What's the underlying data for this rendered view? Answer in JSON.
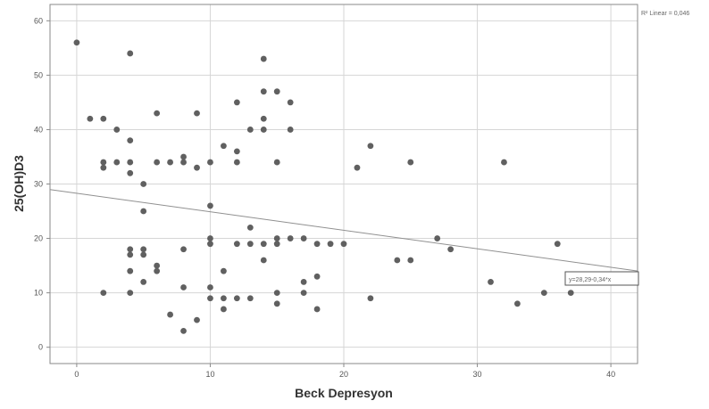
{
  "chart_data": {
    "type": "scatter",
    "xlabel": "Beck Depresyon",
    "ylabel": "25(OH)D3",
    "xlim": [
      -2,
      42
    ],
    "ylim": [
      -3,
      63
    ],
    "x_ticks": [
      0,
      10,
      20,
      30,
      40
    ],
    "y_ticks": [
      0,
      10,
      20,
      30,
      40,
      50,
      60
    ],
    "grid": true,
    "r2_label": "R² Linear = 0,046",
    "fit_label": "y=28,29-0,34*x",
    "fit_line": {
      "intercept": 28.29,
      "slope": -0.34
    },
    "colors": {
      "points": "#606060",
      "grid": "#d6d6d6",
      "fit": "#909090",
      "axis": "#8a8a8a"
    },
    "points": [
      {
        "x": 0,
        "y": 56
      },
      {
        "x": 1,
        "y": 42
      },
      {
        "x": 2,
        "y": 42
      },
      {
        "x": 2,
        "y": 34
      },
      {
        "x": 2,
        "y": 33
      },
      {
        "x": 2,
        "y": 10
      },
      {
        "x": 3,
        "y": 40
      },
      {
        "x": 3,
        "y": 34
      },
      {
        "x": 4,
        "y": 54
      },
      {
        "x": 4,
        "y": 38
      },
      {
        "x": 4,
        "y": 34
      },
      {
        "x": 4,
        "y": 32
      },
      {
        "x": 4,
        "y": 18
      },
      {
        "x": 4,
        "y": 17
      },
      {
        "x": 4,
        "y": 14
      },
      {
        "x": 4,
        "y": 10
      },
      {
        "x": 5,
        "y": 30
      },
      {
        "x": 5,
        "y": 25
      },
      {
        "x": 5,
        "y": 18
      },
      {
        "x": 5,
        "y": 17
      },
      {
        "x": 5,
        "y": 12
      },
      {
        "x": 6,
        "y": 43
      },
      {
        "x": 6,
        "y": 34
      },
      {
        "x": 6,
        "y": 15
      },
      {
        "x": 6,
        "y": 14
      },
      {
        "x": 7,
        "y": 34
      },
      {
        "x": 7,
        "y": 6
      },
      {
        "x": 8,
        "y": 35
      },
      {
        "x": 8,
        "y": 34
      },
      {
        "x": 8,
        "y": 18
      },
      {
        "x": 8,
        "y": 11
      },
      {
        "x": 8,
        "y": 3
      },
      {
        "x": 9,
        "y": 43
      },
      {
        "x": 9,
        "y": 33
      },
      {
        "x": 9,
        "y": 5
      },
      {
        "x": 10,
        "y": 34
      },
      {
        "x": 10,
        "y": 26
      },
      {
        "x": 10,
        "y": 20
      },
      {
        "x": 10,
        "y": 19
      },
      {
        "x": 10,
        "y": 11
      },
      {
        "x": 10,
        "y": 9
      },
      {
        "x": 11,
        "y": 37
      },
      {
        "x": 11,
        "y": 14
      },
      {
        "x": 11,
        "y": 9
      },
      {
        "x": 11,
        "y": 7
      },
      {
        "x": 12,
        "y": 45
      },
      {
        "x": 12,
        "y": 36
      },
      {
        "x": 12,
        "y": 34
      },
      {
        "x": 12,
        "y": 19
      },
      {
        "x": 12,
        "y": 9
      },
      {
        "x": 13,
        "y": 40
      },
      {
        "x": 13,
        "y": 22
      },
      {
        "x": 13,
        "y": 19
      },
      {
        "x": 13,
        "y": 9
      },
      {
        "x": 14,
        "y": 53
      },
      {
        "x": 14,
        "y": 47
      },
      {
        "x": 14,
        "y": 42
      },
      {
        "x": 14,
        "y": 40
      },
      {
        "x": 14,
        "y": 19
      },
      {
        "x": 14,
        "y": 16
      },
      {
        "x": 15,
        "y": 47
      },
      {
        "x": 15,
        "y": 34
      },
      {
        "x": 15,
        "y": 20
      },
      {
        "x": 15,
        "y": 19
      },
      {
        "x": 15,
        "y": 10
      },
      {
        "x": 15,
        "y": 8
      },
      {
        "x": 16,
        "y": 45
      },
      {
        "x": 16,
        "y": 40
      },
      {
        "x": 16,
        "y": 20
      },
      {
        "x": 17,
        "y": 20
      },
      {
        "x": 17,
        "y": 12
      },
      {
        "x": 17,
        "y": 10
      },
      {
        "x": 18,
        "y": 19
      },
      {
        "x": 18,
        "y": 13
      },
      {
        "x": 18,
        "y": 7
      },
      {
        "x": 19,
        "y": 19
      },
      {
        "x": 20,
        "y": 19
      },
      {
        "x": 21,
        "y": 33
      },
      {
        "x": 22,
        "y": 37
      },
      {
        "x": 22,
        "y": 9
      },
      {
        "x": 24,
        "y": 16
      },
      {
        "x": 25,
        "y": 34
      },
      {
        "x": 25,
        "y": 16
      },
      {
        "x": 27,
        "y": 20
      },
      {
        "x": 28,
        "y": 18
      },
      {
        "x": 31,
        "y": 12
      },
      {
        "x": 32,
        "y": 34
      },
      {
        "x": 33,
        "y": 8
      },
      {
        "x": 35,
        "y": 10
      },
      {
        "x": 36,
        "y": 19
      },
      {
        "x": 37,
        "y": 10
      }
    ]
  }
}
